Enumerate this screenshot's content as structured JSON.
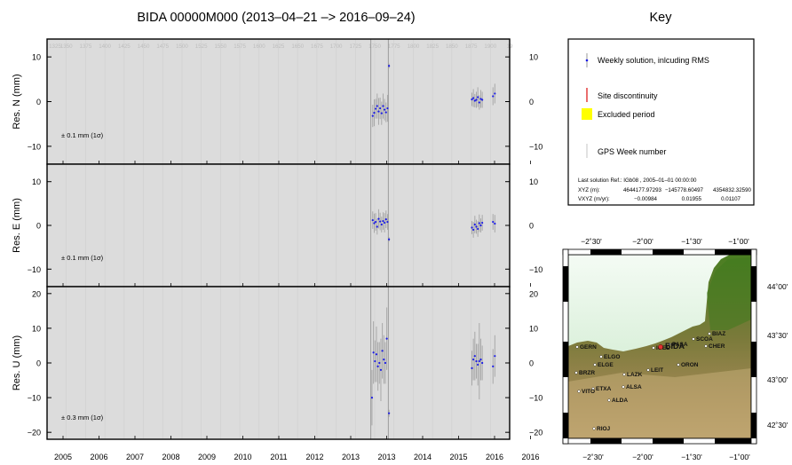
{
  "chart_data": {
    "type": "scatter",
    "title": "BIDA 00000M000 (2013–04–21 –> 2016–09–24)",
    "x_axis": {
      "ticks": [
        "2005",
        "2006",
        "2007",
        "2008",
        "2009",
        "2010",
        "2011",
        "2012",
        "2013",
        "2013",
        "2014",
        "2015",
        "2016",
        "2016"
      ],
      "range": [
        2004.5,
        2017.0
      ],
      "gps_weeks": [
        "1325",
        "1350",
        "1375",
        "1400",
        "1425",
        "1450",
        "1475",
        "1500",
        "1525",
        "1550",
        "1575",
        "1600",
        "1625",
        "1650",
        "1675",
        "1700",
        "1725",
        "1750",
        "1775",
        "1800",
        "1825",
        "1850",
        "1875",
        "1900",
        "19"
      ],
      "gps_week_range": [
        1325,
        1925
      ]
    },
    "discontinuities": [
      2013.25,
      2013.72
    ],
    "panels": [
      {
        "ylabel": "Res. N (mm)",
        "ylim": [
          -14,
          14
        ],
        "yticks": [
          -10,
          0,
          10
        ],
        "ytick_labels": [
          "−10",
          "0",
          "10"
        ],
        "annotation": "± 0.1 mm (1σ)",
        "series": [
          {
            "x": [
              2013.3,
              2013.34,
              2013.38,
              2013.42,
              2013.46,
              2013.5,
              2013.54,
              2013.58,
              2013.62,
              2013.66,
              2013.7,
              2013.74
            ],
            "y": [
              -3.2,
              -2.5,
              -1.6,
              -1.0,
              -2.2,
              -1.5,
              -2.6,
              -1.0,
              -1.8,
              -2.4,
              -1.5,
              8.0
            ],
            "err": [
              2.5,
              3.0,
              2.2,
              2.8,
              3.0,
              2.4,
              2.6,
              2.8,
              2.4,
              2.2,
              3.0,
              0.5
            ]
          },
          {
            "x": [
              2015.98,
              2016.02,
              2016.06,
              2016.1,
              2016.14,
              2016.18,
              2016.22,
              2016.26,
              2016.55,
              2016.6
            ],
            "y": [
              0.5,
              0.8,
              0.2,
              0.4,
              1.0,
              -0.2,
              0.6,
              0.4,
              1.2,
              1.8
            ],
            "err": [
              1.5,
              2.0,
              1.5,
              1.8,
              2.2,
              1.6,
              2.0,
              1.8,
              2.0,
              2.2
            ]
          }
        ]
      },
      {
        "ylabel": "Res. E (mm)",
        "ylim": [
          -14,
          14
        ],
        "yticks": [
          -10,
          0,
          10
        ],
        "ytick_labels": [
          "−10",
          "0",
          "10"
        ],
        "annotation": "± 0.1 mm (1σ)",
        "series": [
          {
            "x": [
              2013.3,
              2013.34,
              2013.38,
              2013.42,
              2013.46,
              2013.5,
              2013.54,
              2013.58,
              2013.62,
              2013.66,
              2013.7,
              2013.74
            ],
            "y": [
              1.2,
              0.5,
              0.8,
              -0.3,
              1.5,
              0.9,
              0.2,
              1.0,
              0.6,
              1.4,
              0.8,
              -3.2
            ],
            "err": [
              2.0,
              2.2,
              2.0,
              1.8,
              2.2,
              2.0,
              1.8,
              2.0,
              2.2,
              2.0,
              1.8,
              0.5
            ]
          },
          {
            "x": [
              2015.98,
              2016.02,
              2016.06,
              2016.1,
              2016.14,
              2016.18,
              2016.22,
              2016.26,
              2016.55,
              2016.6
            ],
            "y": [
              -0.5,
              -1.0,
              0.2,
              -0.3,
              -0.8,
              0.5,
              0.0,
              0.6,
              0.8,
              0.4
            ],
            "err": [
              1.5,
              1.8,
              2.0,
              1.6,
              1.8,
              2.0,
              1.6,
              1.8,
              1.8,
              2.0
            ]
          }
        ]
      },
      {
        "ylabel": "Res. U (mm)",
        "ylim": [
          -22,
          22
        ],
        "yticks": [
          -20,
          -10,
          0,
          10,
          20
        ],
        "ytick_labels": [
          "−20",
          "−10",
          "0",
          "10",
          "20"
        ],
        "annotation": "± 0.3 mm (1σ)",
        "series": [
          {
            "x": [
              2013.28,
              2013.32,
              2013.36,
              2013.4,
              2013.44,
              2013.48,
              2013.52,
              2013.56,
              2013.6,
              2013.64,
              2013.68,
              2013.74
            ],
            "y": [
              -10.0,
              3.0,
              0.5,
              2.5,
              -1.0,
              0.0,
              -2.0,
              3.5,
              1.0,
              0.0,
              7.0,
              -14.5
            ],
            "err": [
              8.0,
              9.0,
              6.0,
              8.0,
              7.0,
              6.0,
              9.0,
              8.0,
              7.0,
              6.0,
              9.0,
              1.0
            ]
          },
          {
            "x": [
              2015.98,
              2016.02,
              2016.06,
              2016.1,
              2016.14,
              2016.18,
              2016.22,
              2016.26,
              2016.55,
              2016.6
            ],
            "y": [
              -1.5,
              1.0,
              2.0,
              0.5,
              -0.5,
              0.5,
              1.0,
              0.0,
              -1.0,
              2.0
            ],
            "err": [
              5.0,
              6.0,
              7.0,
              5.0,
              6.0,
              11.0,
              6.0,
              5.0,
              5.0,
              6.0
            ]
          }
        ]
      }
    ]
  },
  "key": {
    "title": "Key",
    "weekly_label": "Weekly solution, inlcuding RMS",
    "discontinuity_label": "Site discontinuity",
    "excluded_label": "Excluded period",
    "gpsweek_label": "GPS Week number",
    "ref_line": "Last solution Ref.: IGb08 , 2005–01–01 00:00:00",
    "xyz_label": "XYZ (m):",
    "xyz_values": [
      "4644177.97293",
      "−145778.60497",
      "4354832.32590"
    ],
    "vxyz_label": "VXYZ (m/yr):",
    "vxyz_values": [
      "−0.00984",
      "0.01955",
      "0.01107"
    ]
  },
  "map": {
    "lon_labels": [
      "−2˚30'",
      "−2˚00'",
      "−1˚30'",
      "−1˚00'"
    ],
    "lat_labels": [
      "44˚00'",
      "43˚30'",
      "43˚00'",
      "42˚30'"
    ],
    "highlight": "BIDA",
    "stations": [
      "BIAZ",
      "SCOA",
      "CHER",
      "IGEL",
      "PASA",
      "GERN",
      "ELGO",
      "ELGE",
      "BRZR",
      "LEIT",
      "ORON",
      "LAZK",
      "ETXA",
      "ALSA",
      "VITO",
      "ALDA",
      "RIOJ"
    ]
  },
  "colors": {
    "point": "#1a1ae6",
    "errorbar": "#a8a8a8",
    "panel_bg": "#dcdcdc",
    "discontinuity": "#e03030",
    "excluded": "#ffff00",
    "sea": "#ffffff",
    "land_low": "#5a8c2a",
    "land_high": "#a08a58"
  }
}
